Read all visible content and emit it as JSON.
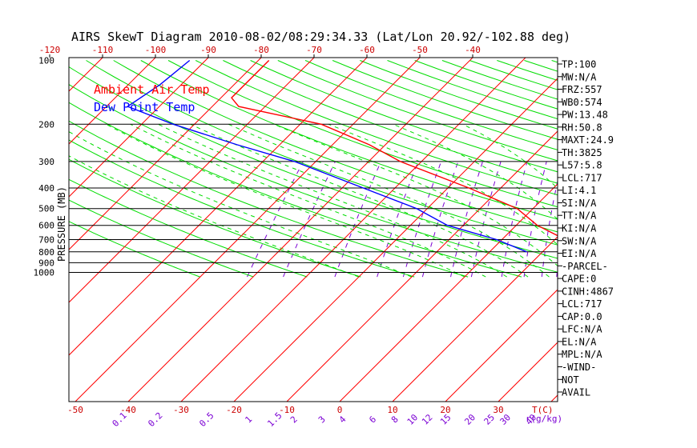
{
  "chart_data": {
    "type": "line",
    "chart_kind": "skew-T log-P diagram",
    "title": "AIRS SkewT Diagram 2010-08-02/08:29:34.33 (Lat/Lon 20.92/-102.88 deg)",
    "ylabel": "PRESSURE (MB)",
    "xlabel": "T(C)",
    "mixing_ratio_label": "r(g/kg)",
    "y_scale": "log-pressure",
    "ylim": [
      1050,
      100
    ],
    "pressure_ticks": [
      100,
      200,
      300,
      400,
      500,
      600,
      700,
      800,
      900,
      1000
    ],
    "pressure_tick_labels": [
      "100",
      "200",
      "300",
      "400",
      "500",
      "600",
      "700",
      "800",
      "900",
      "1000"
    ],
    "isobar_lines": [
      200,
      300,
      400,
      500,
      600,
      700,
      800,
      900,
      1000
    ],
    "top_temp_ticks": [
      -120,
      -110,
      -100,
      -90,
      -80,
      -70,
      -60,
      -50,
      -40
    ],
    "top_temp_tick_labels": [
      "-120",
      "-110",
      "-100",
      "-90",
      "-80",
      "-70",
      "-60",
      "-50",
      "-40"
    ],
    "bottom_temp_ticks": [
      -50,
      -40,
      -30,
      -20,
      -10,
      0,
      10,
      20,
      30
    ],
    "bottom_temp_tick_labels": [
      "-50",
      "-40",
      "-30",
      "-20",
      "-10",
      "0",
      "10",
      "20",
      "30"
    ],
    "mixing_ratio_values": [
      0.1,
      0.2,
      0.5,
      1,
      1.5,
      2,
      3,
      4,
      6,
      8,
      10,
      12,
      15,
      20,
      25,
      30,
      40
    ],
    "mixing_ratio_labels": [
      "0.1",
      "0.2",
      "0.5",
      "1",
      "1.5",
      "2",
      "3",
      "4",
      "6",
      "8",
      "10",
      "12",
      "15",
      "20",
      "25",
      "30",
      "40"
    ],
    "isotherms": [
      -150,
      -140,
      -130,
      -120,
      -110,
      -100,
      -90,
      -80,
      -70,
      -60,
      -50,
      -40,
      -30,
      -20,
      -10,
      0,
      10,
      20,
      30,
      40,
      50
    ],
    "dry_adiabats_theta_k": [
      220,
      230,
      240,
      250,
      260,
      270,
      280,
      290,
      300,
      310,
      320,
      330,
      340,
      350,
      360,
      370,
      380,
      390,
      400,
      410,
      420,
      430,
      440,
      450,
      460,
      470,
      480,
      500,
      520,
      540
    ],
    "moist_adiabats_c": [
      -20,
      -10,
      0,
      4,
      8,
      12,
      16,
      20,
      24,
      28,
      32
    ],
    "series": [
      {
        "name": "Ambient Air Temp",
        "color": "#ff0000",
        "pressure": [
          100,
          150,
          165,
          200,
          250,
          300,
          400,
          500,
          600,
          700,
          800
        ],
        "temperature": [
          -78,
          -78,
          -75,
          -56,
          -43,
          -34,
          -16,
          -3,
          4,
          12,
          19
        ]
      },
      {
        "name": "Dew Point Temp",
        "color": "#0000ff",
        "pressure": [
          100,
          130,
          165,
          200,
          250,
          300,
          400,
          500,
          600,
          700,
          800
        ],
        "temperature": [
          -93,
          -94,
          -96,
          -84,
          -68,
          -54,
          -36,
          -22,
          -13,
          -1,
          7
        ]
      }
    ],
    "legend": [
      "Ambient Air Temp",
      "Dew Point Temp"
    ],
    "legend_position": "top-left",
    "grid": true,
    "colors": {
      "isotherm": "#ff0000",
      "dry_adiabat": "#00dd00",
      "moist_adiabat": "#00dd00",
      "mixing_ratio": "#7b00d4",
      "isobar": "#000000",
      "temperature_axis_text": "#cc0000",
      "mixing_axis_text": "#7b00d4"
    },
    "index_panel": [
      "TP:100",
      "MW:N/A",
      "FRZ:557",
      "WB0:574",
      "PW:13.48",
      "RH:50.8",
      "MAXT:24.9",
      "TH:3825",
      "L57:5.8",
      "LCL:717",
      "LI:4.1",
      "SI:N/A",
      "TT:N/A",
      "KI:N/A",
      "SW:N/A",
      "EI:N/A",
      "-PARCEL-",
      "CAPE:0",
      "CINH:4867",
      "LCL:717",
      "CAP:0.0",
      "LFC:N/A",
      "EL:N/A",
      "MPL:N/A",
      "-WIND-",
      "NOT",
      "AVAIL"
    ]
  }
}
